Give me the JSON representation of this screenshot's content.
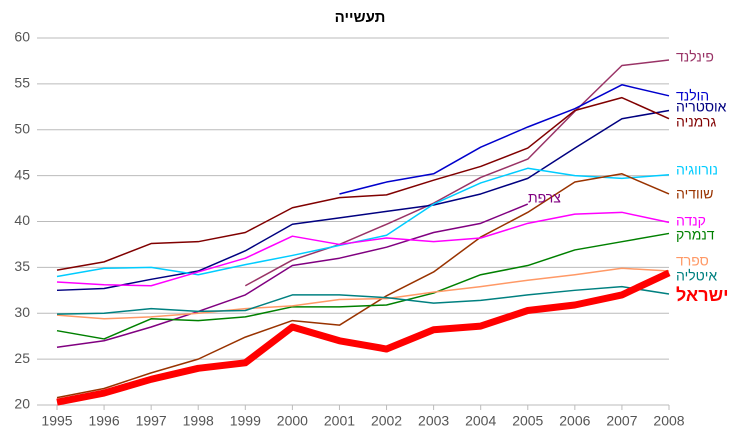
{
  "chart_data": {
    "type": "line",
    "title": "תעשייה",
    "x": [
      1995,
      1996,
      1997,
      1998,
      1999,
      2000,
      2001,
      2002,
      2003,
      2004,
      2005,
      2006,
      2007,
      2008
    ],
    "xlim": [
      1995,
      2008
    ],
    "xticks": [
      1995,
      1996,
      1997,
      1998,
      1999,
      2000,
      2001,
      2002,
      2003,
      2004,
      2005,
      2006,
      2007,
      2008
    ],
    "ylim": [
      20,
      60
    ],
    "yticks": [
      20,
      25,
      30,
      35,
      40,
      45,
      50,
      55,
      60
    ],
    "grid": true,
    "series": [
      {
        "name": "פינלנד",
        "color": "#993366",
        "values": [
          null,
          null,
          null,
          null,
          33.0,
          35.8,
          37.5,
          39.7,
          42.0,
          44.8,
          46.8,
          52.0,
          57.0,
          57.6
        ]
      },
      {
        "name": "הולנד",
        "color": "#0000cc",
        "values": [
          null,
          null,
          null,
          null,
          null,
          null,
          43.0,
          44.3,
          45.2,
          48.1,
          50.3,
          52.3,
          54.9,
          53.7
        ]
      },
      {
        "name": "אוסטריה",
        "color": "#000080",
        "values": [
          32.5,
          32.7,
          33.7,
          34.6,
          36.8,
          39.7,
          40.4,
          41.1,
          41.8,
          43.0,
          44.7,
          48.0,
          51.2,
          52.1
        ]
      },
      {
        "name": "גרמניה",
        "color": "#800000",
        "values": [
          34.7,
          35.6,
          37.6,
          37.8,
          38.8,
          41.5,
          42.6,
          42.9,
          44.5,
          46.0,
          48.0,
          52.1,
          53.5,
          51.2
        ]
      },
      {
        "name": "נורווגיה",
        "color": "#00ccff",
        "values": [
          34.0,
          34.9,
          35.0,
          34.2,
          35.3,
          36.3,
          37.4,
          38.5,
          41.9,
          44.2,
          45.8,
          45.0,
          44.7,
          45.1
        ]
      },
      {
        "name": "שוודיה",
        "color": "#993300",
        "values": [
          20.8,
          21.8,
          23.5,
          25.0,
          27.4,
          29.2,
          28.7,
          31.9,
          34.5,
          38.3,
          41.0,
          44.3,
          45.2,
          43.0
        ]
      },
      {
        "name": "צרפת",
        "color": "#800080",
        "values": [
          26.3,
          27.0,
          28.5,
          30.2,
          32.0,
          35.2,
          36.0,
          37.2,
          38.8,
          39.8,
          41.9,
          null,
          null,
          null
        ]
      },
      {
        "name": "קנדה",
        "color": "#ff00ff",
        "values": [
          33.4,
          33.1,
          33.0,
          34.5,
          36.0,
          38.4,
          37.5,
          38.2,
          37.8,
          38.2,
          39.8,
          40.8,
          41.0,
          39.9
        ]
      },
      {
        "name": "דנמרק",
        "color": "#008000",
        "values": [
          28.1,
          27.2,
          29.4,
          29.2,
          29.6,
          30.7,
          30.7,
          30.9,
          32.2,
          34.2,
          35.2,
          36.9,
          37.8,
          38.7
        ]
      },
      {
        "name": "ספרד",
        "color": "#ff9966",
        "values": [
          29.8,
          29.4,
          29.6,
          30.0,
          30.5,
          30.8,
          31.5,
          31.6,
          32.3,
          32.9,
          33.6,
          34.2,
          34.9,
          34.6
        ]
      },
      {
        "name": "איטליה",
        "color": "#008080",
        "values": [
          29.9,
          30.0,
          30.5,
          30.2,
          30.3,
          32.0,
          32.0,
          31.7,
          31.1,
          31.4,
          32.0,
          32.5,
          32.9,
          32.1
        ]
      },
      {
        "name": "ישראל",
        "color": "#ff0000",
        "values": [
          20.3,
          21.3,
          22.8,
          24.0,
          24.6,
          28.5,
          27.0,
          26.1,
          28.2,
          28.6,
          30.3,
          30.9,
          32.0,
          34.4
        ]
      }
    ]
  }
}
